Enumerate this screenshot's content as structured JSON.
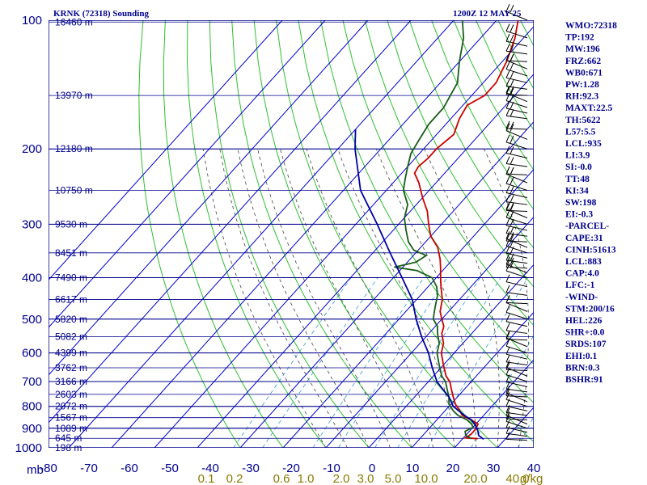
{
  "header": {
    "station": "KRNK (72318) Sounding",
    "time": "1200Z 12 MAY 25"
  },
  "colors": {
    "frame": "#00008b",
    "isotherm": "#0000cd",
    "dry_adiabat": "#2fbf2f",
    "moist_adiabat": "#444444",
    "mixing_ratio": "#3399cc",
    "temperature": "#cc0000",
    "dewpoint": "#1a5c1a",
    "parcel": "#0000a0",
    "wind": "#000000",
    "index_text": "#00008b",
    "mixing_ratio_text": "#8b7a00"
  },
  "chart_data": {
    "type": "skew-t log-p",
    "title": "KRNK (72318) Sounding",
    "valid_time": "1200Z 12 MAY 25",
    "pressure_axis": {
      "unit": "mb",
      "range": [
        1000,
        100
      ],
      "scale": "log",
      "ticks": [
        100,
        200,
        300,
        400,
        500,
        600,
        700,
        800,
        900,
        1000
      ]
    },
    "temperature_axis": {
      "unit": "°C",
      "range": [
        -80,
        40
      ],
      "ticks": [
        -80,
        -70,
        -60,
        -50,
        -40,
        -30,
        -20,
        -10,
        0,
        10,
        20,
        30,
        40
      ],
      "tick_labels": [
        "-80",
        "-70",
        "-60",
        "-50",
        "-40",
        "-30",
        "-20",
        "-10",
        "0",
        "10",
        "20",
        "30",
        "40"
      ]
    },
    "mixing_ratio_labels": [
      "0.1",
      "0.2",
      "0.6",
      "1.0",
      "2.0",
      "3.0",
      "5.0",
      "10.0",
      "20.0",
      "40.0"
    ],
    "mixing_ratio_unit": "g/kg",
    "height_labels": [
      {
        "p": 101,
        "label": "16460 m"
      },
      {
        "p": 150,
        "label": "13970 m"
      },
      {
        "p": 200,
        "label": "12180 m"
      },
      {
        "p": 250,
        "label": "10750 m"
      },
      {
        "p": 300,
        "label": "9530 m"
      },
      {
        "p": 350,
        "label": "8451 m"
      },
      {
        "p": 400,
        "label": "7490 m"
      },
      {
        "p": 450,
        "label": "6617 m"
      },
      {
        "p": 500,
        "label": "5820 m"
      },
      {
        "p": 550,
        "label": "5082 m"
      },
      {
        "p": 600,
        "label": "4399 m"
      },
      {
        "p": 650,
        "label": "3762 m"
      },
      {
        "p": 700,
        "label": "3166 m"
      },
      {
        "p": 750,
        "label": "2603 m"
      },
      {
        "p": 800,
        "label": "2072 m"
      },
      {
        "p": 850,
        "label": "1567 m"
      },
      {
        "p": 900,
        "label": "1089 m"
      },
      {
        "p": 950,
        "label": "645 m"
      },
      {
        "p": 1000,
        "label": "198 m"
      }
    ],
    "series": [
      {
        "name": "temperature",
        "points": [
          [
            952,
            13.5
          ],
          [
            948,
            10.5
          ],
          [
            930,
            11
          ],
          [
            905,
            11
          ],
          [
            880,
            10.5
          ],
          [
            860,
            8
          ],
          [
            840,
            5
          ],
          [
            820,
            3.5
          ],
          [
            790,
            1
          ],
          [
            760,
            -1
          ],
          [
            730,
            -3
          ],
          [
            700,
            -5
          ],
          [
            680,
            -7
          ],
          [
            640,
            -10
          ],
          [
            600,
            -13
          ],
          [
            570,
            -14.5
          ],
          [
            540,
            -17
          ],
          [
            520,
            -18
          ],
          [
            500,
            -20
          ],
          [
            480,
            -22
          ],
          [
            450,
            -24
          ],
          [
            420,
            -27
          ],
          [
            400,
            -29
          ],
          [
            380,
            -31
          ],
          [
            362,
            -33
          ],
          [
            340,
            -36
          ],
          [
            320,
            -40
          ],
          [
            300,
            -43
          ],
          [
            280,
            -46
          ],
          [
            260,
            -50
          ],
          [
            240,
            -54
          ],
          [
            228,
            -57
          ],
          [
            220,
            -57.5
          ],
          [
            210,
            -57
          ],
          [
            200,
            -57
          ],
          [
            185,
            -56
          ],
          [
            170,
            -58
          ],
          [
            158,
            -59
          ],
          [
            150,
            -57
          ],
          [
            140,
            -57
          ],
          [
            125,
            -59
          ],
          [
            110,
            -62
          ],
          [
            100,
            -65
          ]
        ]
      },
      {
        "name": "dewpoint",
        "points": [
          [
            952,
            12
          ],
          [
            935,
            10
          ],
          [
            915,
            9
          ],
          [
            895,
            10
          ],
          [
            880,
            9
          ],
          [
            860,
            7
          ],
          [
            840,
            4
          ],
          [
            820,
            2
          ],
          [
            790,
            -0.5
          ],
          [
            760,
            -2
          ],
          [
            730,
            -4
          ],
          [
            700,
            -6
          ],
          [
            680,
            -8
          ],
          [
            640,
            -11
          ],
          [
            600,
            -14
          ],
          [
            570,
            -15.5
          ],
          [
            540,
            -18
          ],
          [
            520,
            -19.5
          ],
          [
            500,
            -22
          ],
          [
            470,
            -24
          ],
          [
            440,
            -26
          ],
          [
            420,
            -28
          ],
          [
            400,
            -31
          ],
          [
            385,
            -36
          ],
          [
            378,
            -42
          ],
          [
            368,
            -38
          ],
          [
            355,
            -37
          ],
          [
            345,
            -41
          ],
          [
            330,
            -44
          ],
          [
            310,
            -47
          ],
          [
            290,
            -50
          ],
          [
            270,
            -52
          ],
          [
            250,
            -56
          ],
          [
            235,
            -58
          ],
          [
            220,
            -60
          ],
          [
            205,
            -62
          ],
          [
            190,
            -63
          ],
          [
            175,
            -64
          ],
          [
            160,
            -64
          ],
          [
            150,
            -65
          ],
          [
            140,
            -66
          ],
          [
            125,
            -70
          ],
          [
            110,
            -74
          ],
          [
            100,
            -78
          ]
        ]
      },
      {
        "name": "parcel",
        "points": [
          [
            955,
            15
          ],
          [
            935,
            13
          ],
          [
            915,
            12
          ],
          [
            883,
            10
          ],
          [
            860,
            8
          ],
          [
            840,
            5.5
          ],
          [
            800,
            1
          ],
          [
            760,
            -2
          ],
          [
            720,
            -6
          ],
          [
            700,
            -8
          ],
          [
            650,
            -12
          ],
          [
            600,
            -16
          ],
          [
            550,
            -21
          ],
          [
            500,
            -26
          ],
          [
            450,
            -31
          ],
          [
            400,
            -38
          ],
          [
            350,
            -46
          ],
          [
            300,
            -55
          ],
          [
            250,
            -66
          ],
          [
            200,
            -76
          ],
          [
            180,
            -80
          ]
        ]
      }
    ],
    "wind_levels": [
      100,
      110,
      115,
      120,
      125,
      130,
      135,
      140,
      145,
      150,
      155,
      160,
      165,
      170,
      180,
      190,
      200,
      210,
      220,
      230,
      240,
      250,
      260,
      270,
      280,
      290,
      300,
      310,
      320,
      330,
      340,
      350,
      360,
      370,
      380,
      390,
      400,
      420,
      440,
      460,
      480,
      500,
      520,
      540,
      560,
      580,
      600,
      620,
      640,
      660,
      680,
      700,
      720,
      740,
      760,
      780,
      800,
      820,
      840,
      860,
      880,
      900,
      920,
      940,
      960
    ],
    "indices": [
      "WMO:72318",
      "TP:192",
      "MW:196",
      "FRZ:662",
      "WB0:671",
      "PW:1.28",
      "RH:92.3",
      "MAXT:22.5",
      "TH:5622",
      "L57:5.5",
      "LCL:935",
      "LI:3.9",
      "SI:-0.0",
      "TT:48",
      "KI:34",
      "SW:198",
      "EI:-0.3",
      "-PARCEL-",
      "CAPE:31",
      "CINH:51613",
      "LCL:883",
      "CAP:4.0",
      "LFC:-1",
      "-WIND-",
      "STM:200/16",
      "HEL:226",
      "SHR+:0.0",
      "SRDS:107",
      "EHI:0.1",
      "BRN:0.3",
      "BSHR:91"
    ],
    "legend": "none",
    "grid": true
  }
}
